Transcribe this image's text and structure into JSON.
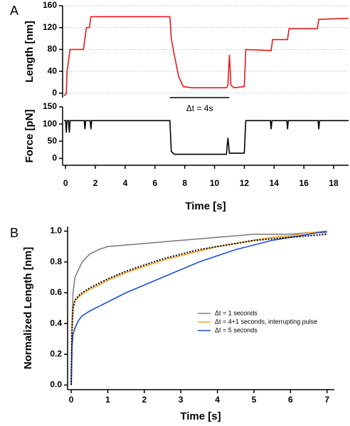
{
  "chart_data": [
    {
      "type": "line",
      "label": "A",
      "ylabel": "Length [nm]",
      "xlim": [
        -0.2,
        19
      ],
      "ylim": [
        -8,
        160
      ],
      "yticks": [
        0,
        40,
        80,
        120,
        160
      ],
      "grid": true,
      "x": [
        -0.1,
        0.05,
        0.1,
        0.2,
        0.3,
        1.2,
        1.3,
        1.4,
        1.6,
        1.7,
        7.0,
        7.1,
        7.3,
        7.6,
        7.9,
        8.5,
        10.8,
        10.9,
        11.0,
        11.1,
        11.3,
        12.0,
        12.1,
        13.8,
        13.9,
        14.9,
        15.0,
        16.9,
        17.0,
        19.0
      ],
      "series": [
        {
          "color": "#e31a1c",
          "values": [
            -5,
            0,
            40,
            60,
            80,
            80,
            100,
            120,
            120,
            140,
            140,
            100,
            70,
            30,
            12,
            10,
            10,
            15,
            70,
            15,
            10,
            12,
            80,
            78,
            98,
            98,
            118,
            118,
            135,
            137
          ]
        }
      ],
      "annotation": {
        "text": "Δt = 4s",
        "span": [
          7.0,
          11.0
        ]
      }
    },
    {
      "type": "line",
      "ylabel": "Force [pN]",
      "xlabel": "Time [s]",
      "xlim": [
        -0.2,
        19
      ],
      "ylim": [
        -20,
        150
      ],
      "yticks": [
        0,
        50,
        100,
        150
      ],
      "xticks": [
        0,
        2,
        4,
        6,
        8,
        10,
        12,
        14,
        16,
        18
      ],
      "x": [
        -0.1,
        0.0,
        0.05,
        0.1,
        0.2,
        0.25,
        0.3,
        1.25,
        1.3,
        1.35,
        1.4,
        1.65,
        1.7,
        1.75,
        7.0,
        7.1,
        7.3,
        10.8,
        10.9,
        11.0,
        12.0,
        12.1,
        13.75,
        13.8,
        13.85,
        14.85,
        14.9,
        14.95,
        16.95,
        17.0,
        17.05,
        19.0
      ],
      "series": [
        {
          "color": "#000000",
          "values": [
            110,
            110,
            75,
            110,
            110,
            75,
            110,
            110,
            85,
            110,
            110,
            110,
            85,
            110,
            110,
            20,
            12,
            12,
            60,
            15,
            15,
            110,
            110,
            85,
            110,
            110,
            85,
            110,
            110,
            85,
            110,
            110
          ]
        }
      ]
    },
    {
      "type": "line",
      "label": "B",
      "ylabel": "Normalized Length [nm]",
      "xlabel": "Time [s]",
      "xlim": [
        -0.1,
        7.2
      ],
      "ylim": [
        -0.03,
        1.03
      ],
      "xticks": [
        0,
        1,
        2,
        3,
        4,
        5,
        6,
        7
      ],
      "yticks": [
        {
          "value": 0,
          "label": "0.0"
        },
        0.2,
        0.4,
        0.6,
        0.8,
        {
          "value": 1,
          "label": "1.0"
        }
      ],
      "x": [
        0,
        0.02,
        0.05,
        0.1,
        0.2,
        0.3,
        0.5,
        0.75,
        1,
        1.5,
        2,
        2.5,
        3,
        3.5,
        4,
        4.5,
        5,
        5.5,
        6,
        6.5,
        7
      ],
      "series": [
        {
          "name": "Δt = 1 seconds",
          "color": "#808080",
          "values": [
            0,
            0.4,
            0.6,
            0.7,
            0.75,
            0.8,
            0.85,
            0.88,
            0.9,
            0.91,
            0.92,
            0.93,
            0.94,
            0.95,
            0.96,
            0.97,
            0.98,
            0.98,
            0.98,
            0.99,
            0.99
          ]
        },
        {
          "name": "Δt = 4+1 seconds, interrupting pulse",
          "color": "#f5a623",
          "values": [
            0,
            0.35,
            0.5,
            0.55,
            0.57,
            0.59,
            0.62,
            0.65,
            0.68,
            0.73,
            0.77,
            0.81,
            0.84,
            0.87,
            0.9,
            0.92,
            0.94,
            0.96,
            0.97,
            0.99,
            1.0
          ]
        },
        {
          "name": "Δt = 5 seconds",
          "color": "#1f4fd1",
          "values": [
            0,
            0.25,
            0.33,
            0.37,
            0.42,
            0.45,
            0.48,
            0.51,
            0.54,
            0.6,
            0.65,
            0.7,
            0.75,
            0.8,
            0.84,
            0.88,
            0.91,
            0.94,
            0.96,
            0.98,
            1.0
          ]
        },
        {
          "color": "#000000",
          "dash": true,
          "values": [
            0,
            0.35,
            0.5,
            0.55,
            0.58,
            0.6,
            0.63,
            0.66,
            0.69,
            0.74,
            0.78,
            0.82,
            0.85,
            0.88,
            0.9,
            0.92,
            0.94,
            0.95,
            0.96,
            0.97,
            0.98
          ]
        }
      ]
    }
  ]
}
